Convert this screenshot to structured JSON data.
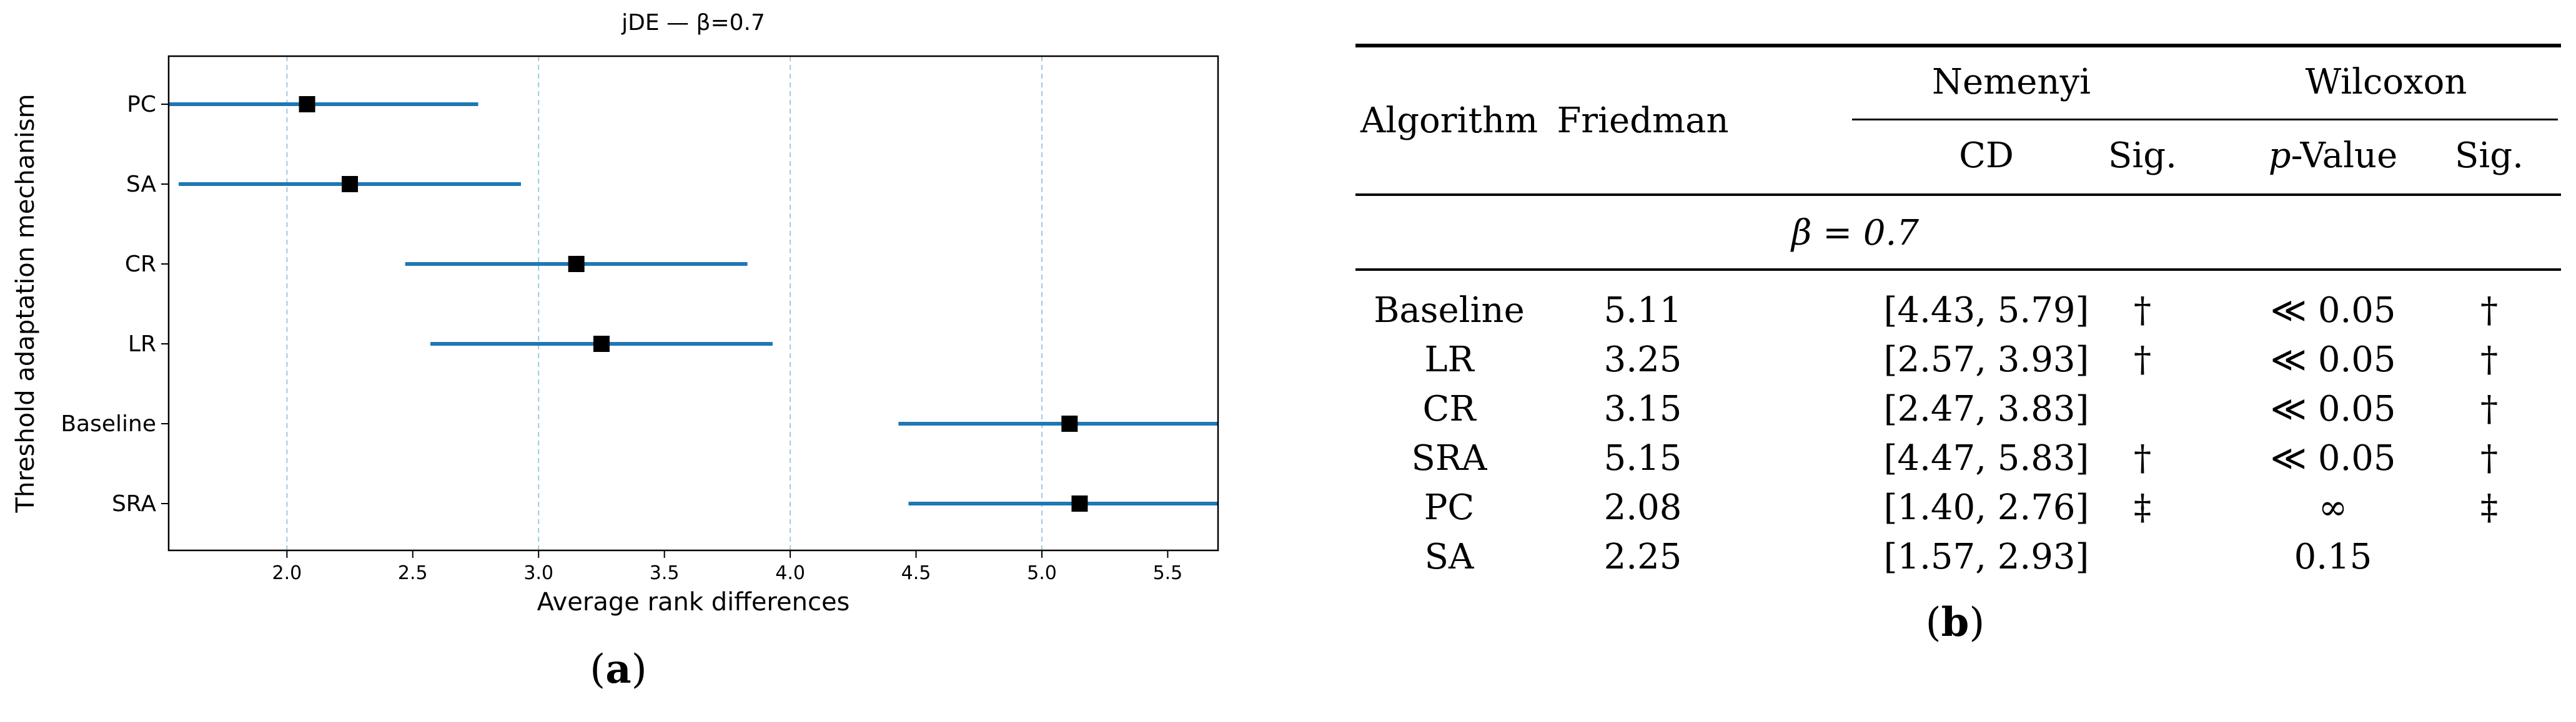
{
  "chart_data": {
    "type": "scatter",
    "title": "jDE — β=0.7",
    "xlabel": "Average rank differences",
    "ylabel": "Threshold adaptation mechanism",
    "xlim": [
      1.53,
      5.7
    ],
    "xticks": [
      "2.0",
      "2.5",
      "3.0",
      "3.5",
      "4.0",
      "4.5",
      "5.0",
      "5.5"
    ],
    "xtick_values": [
      2.0,
      2.5,
      3.0,
      3.5,
      4.0,
      4.5,
      5.0,
      5.5
    ],
    "vlines": [
      2.0,
      3.0,
      4.0,
      5.0
    ],
    "categories": [
      "PC",
      "SA",
      "CR",
      "LR",
      "Baseline",
      "SRA"
    ],
    "points": [
      {
        "label": "PC",
        "mean": 2.08,
        "low": 1.4,
        "high": 2.76
      },
      {
        "label": "SA",
        "mean": 2.25,
        "low": 1.57,
        "high": 2.93
      },
      {
        "label": "CR",
        "mean": 3.15,
        "low": 2.47,
        "high": 3.83
      },
      {
        "label": "LR",
        "mean": 3.25,
        "low": 2.57,
        "high": 3.93
      },
      {
        "label": "Baseline",
        "mean": 5.11,
        "low": 4.43,
        "high": 5.79
      },
      {
        "label": "SRA",
        "mean": 5.15,
        "low": 4.47,
        "high": 5.83
      }
    ],
    "colors": {
      "interval": "#1f77b4",
      "marker": "#000000",
      "vline": "#9ecae1"
    },
    "grid": "vertical dashed"
  },
  "captions": {
    "a_open": "(",
    "a_letter": "a",
    "a_close": ")",
    "b_open": "(",
    "b_letter": "b",
    "b_close": ")"
  },
  "table": {
    "headers": {
      "algorithm": "Algorithm",
      "friedman": "Friedman",
      "nemenyi": "Nemenyi",
      "wilcoxon": "Wilcoxon",
      "cd": "CD",
      "sig1": "Sig.",
      "pvalue_p": "p",
      "pvalue_rest": "-Value",
      "sig2": "Sig."
    },
    "section": "β = 0.7",
    "rows": [
      {
        "algorithm": "Baseline",
        "friedman": "5.11",
        "cd": "[4.43, 5.79]",
        "sig1": "†",
        "pvalue": "≪ 0.05",
        "sig2": "†"
      },
      {
        "algorithm": "LR",
        "friedman": "3.25",
        "cd": "[2.57, 3.93]",
        "sig1": "†",
        "pvalue": "≪ 0.05",
        "sig2": "†"
      },
      {
        "algorithm": "CR",
        "friedman": "3.15",
        "cd": "[2.47, 3.83]",
        "sig1": "",
        "pvalue": "≪ 0.05",
        "sig2": "†"
      },
      {
        "algorithm": "SRA",
        "friedman": "5.15",
        "cd": "[4.47, 5.83]",
        "sig1": "†",
        "pvalue": "≪ 0.05",
        "sig2": "†"
      },
      {
        "algorithm": "PC",
        "friedman": "2.08",
        "cd": "[1.40, 2.76]",
        "sig1": "‡",
        "pvalue": "∞",
        "sig2": "‡"
      },
      {
        "algorithm": "SA",
        "friedman": "2.25",
        "cd": "[1.57, 2.93]",
        "sig1": "",
        "pvalue": "0.15",
        "sig2": ""
      }
    ]
  }
}
